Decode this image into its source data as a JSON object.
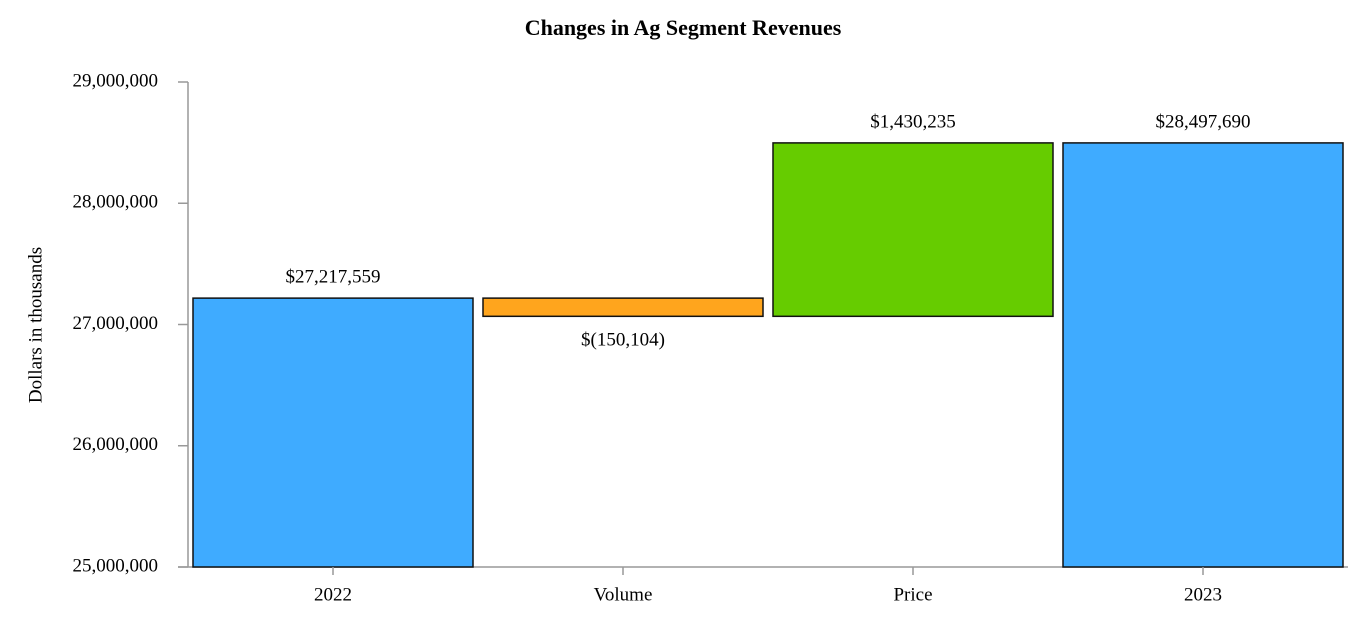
{
  "chart_data": {
    "type": "waterfall",
    "title": "Changes in Ag Segment Revenues",
    "y_label": "Dollars in thousands",
    "categories": [
      "2022",
      "Volume",
      "Price",
      "2023"
    ],
    "values": [
      27217559,
      -150104,
      1430235,
      28497690
    ],
    "value_labels": [
      "$27,217,559",
      "$(150,104)",
      "$1,430,235",
      "$28,497,690"
    ],
    "colors": [
      "#3fabff",
      "#ffa51d",
      "#66cc00",
      "#3fabff"
    ],
    "ylim": [
      25000000,
      29000000
    ],
    "yticks": [
      {
        "value": 25000000,
        "label": "25,000,000"
      },
      {
        "value": 26000000,
        "label": "26,000,000"
      },
      {
        "value": 27000000,
        "label": "27,000,000"
      },
      {
        "value": 28000000,
        "label": "28,000,000"
      },
      {
        "value": 29000000,
        "label": "29,000,000"
      }
    ]
  }
}
